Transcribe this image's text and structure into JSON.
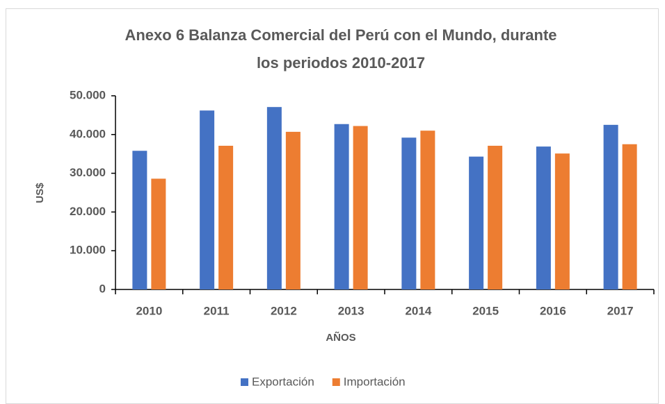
{
  "chart_data": {
    "type": "bar",
    "title": [
      "Anexo 6 Balanza Comercial del Perú con el Mundo, durante",
      "los periodos 2010-2017"
    ],
    "x_label": "AÑOS",
    "y_label": "US$",
    "categories": [
      "2010",
      "2011",
      "2012",
      "2013",
      "2014",
      "2015",
      "2016",
      "2017"
    ],
    "series": [
      {
        "name": "Exportación",
        "color": "#4472c4",
        "values": [
          35800,
          46200,
          47100,
          42700,
          39200,
          34300,
          36900,
          42500
        ]
      },
      {
        "name": "Importación",
        "color": "#ed7d31",
        "values": [
          28600,
          37100,
          40700,
          42200,
          41000,
          37100,
          35100,
          37500
        ]
      }
    ],
    "ylim": [
      0,
      50000
    ],
    "yticks": [
      0,
      {
        "value": 10000,
        "label": "10.000"
      },
      {
        "value": 20000,
        "label": "20.000"
      },
      {
        "value": 30000,
        "label": "30.000"
      },
      {
        "value": 40000,
        "label": "40.000"
      },
      {
        "value": 50000,
        "label": "50.000"
      }
    ],
    "legend": "bottom",
    "grid": false
  }
}
